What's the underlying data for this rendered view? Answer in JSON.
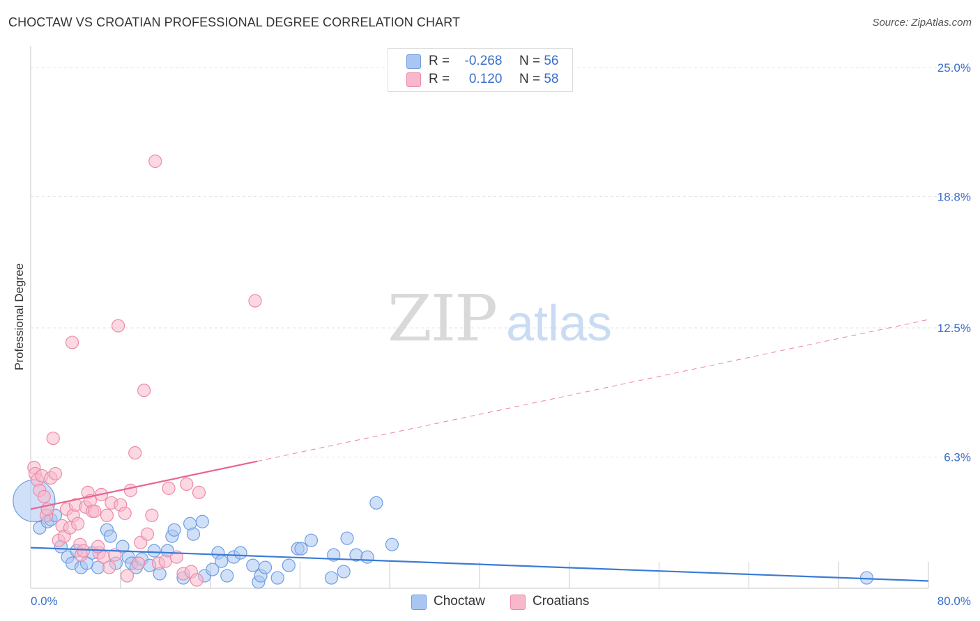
{
  "title": "CHOCTAW VS CROATIAN PROFESSIONAL DEGREE CORRELATION CHART",
  "source": "Source: ZipAtlas.com",
  "watermark": {
    "zip": "ZIP",
    "atlas": "atlas"
  },
  "legend": {
    "r_label": "R =",
    "n_label": "N =",
    "rows": [
      {
        "r": "-0.268",
        "n": "56",
        "color": "#a9c6f2",
        "border": "#6f9de0"
      },
      {
        "r": "0.120",
        "n": "58",
        "color": "#f7b8cb",
        "border": "#ec8aa8"
      }
    ]
  },
  "series_labels": [
    "Choctaw",
    "Croatians"
  ],
  "chart_data": {
    "type": "scatter",
    "title": "CHOCTAW VS CROATIAN PROFESSIONAL DEGREE CORRELATION CHART",
    "xlabel": "",
    "ylabel": "Professional Degree",
    "xlim": [
      0,
      80
    ],
    "ylim": [
      0,
      26
    ],
    "x_tick_labels": [
      "0.0%",
      "80.0%"
    ],
    "y_ticks": [
      6.3,
      12.5,
      18.8,
      25.0
    ],
    "y_tick_labels": [
      "6.3%",
      "12.5%",
      "18.8%",
      "25.0%"
    ],
    "grid": true,
    "series": [
      {
        "name": "Choctaw",
        "color": "#a9c6f2",
        "stroke": "#6f9de0",
        "line_color": "#3a7bd5",
        "trend": {
          "x0": 0,
          "y0": 1.95,
          "x1": 80,
          "y1": 0.35,
          "solid_until": 80
        },
        "points": [
          [
            0.3,
            4.2,
            30
          ],
          [
            0.8,
            2.9,
            9
          ],
          [
            1.5,
            3.2,
            9
          ],
          [
            1.8,
            3.3,
            9
          ],
          [
            2.2,
            3.5,
            9
          ],
          [
            2.7,
            2.0,
            9
          ],
          [
            3.3,
            1.5,
            9
          ],
          [
            3.7,
            1.2,
            9
          ],
          [
            4.1,
            1.8,
            9
          ],
          [
            4.5,
            1.0,
            9
          ],
          [
            5.0,
            1.2,
            9
          ],
          [
            5.5,
            1.7,
            9
          ],
          [
            6.0,
            1.0,
            9
          ],
          [
            6.8,
            2.8,
            9
          ],
          [
            7.1,
            2.5,
            9
          ],
          [
            7.6,
            1.2,
            9
          ],
          [
            8.2,
            2.0,
            9
          ],
          [
            8.7,
            1.5,
            9
          ],
          [
            9.0,
            1.2,
            9
          ],
          [
            9.4,
            1.0,
            9
          ],
          [
            9.9,
            1.4,
            9
          ],
          [
            10.6,
            1.1,
            9
          ],
          [
            11.0,
            1.8,
            9
          ],
          [
            11.5,
            0.7,
            9
          ],
          [
            12.2,
            1.8,
            9
          ],
          [
            12.6,
            2.5,
            9
          ],
          [
            12.8,
            2.8,
            9
          ],
          [
            13.6,
            0.5,
            9
          ],
          [
            14.2,
            3.1,
            9
          ],
          [
            14.5,
            2.6,
            9
          ],
          [
            15.3,
            3.2,
            9
          ],
          [
            15.5,
            0.6,
            9
          ],
          [
            16.2,
            0.9,
            9
          ],
          [
            16.7,
            1.7,
            9
          ],
          [
            17.0,
            1.3,
            9
          ],
          [
            17.5,
            0.6,
            9
          ],
          [
            18.1,
            1.5,
            9
          ],
          [
            18.7,
            1.7,
            9
          ],
          [
            19.8,
            1.1,
            9
          ],
          [
            20.3,
            0.3,
            9
          ],
          [
            20.5,
            0.6,
            9
          ],
          [
            20.9,
            1.0,
            9
          ],
          [
            22.0,
            0.5,
            9
          ],
          [
            23.0,
            1.1,
            9
          ],
          [
            23.8,
            1.9,
            9
          ],
          [
            24.1,
            1.9,
            9
          ],
          [
            25.0,
            2.3,
            9
          ],
          [
            26.8,
            0.5,
            9
          ],
          [
            27.0,
            1.6,
            9
          ],
          [
            27.9,
            0.8,
            9
          ],
          [
            28.2,
            2.4,
            9
          ],
          [
            29.0,
            1.6,
            9
          ],
          [
            30.0,
            1.5,
            9
          ],
          [
            30.8,
            4.1,
            9
          ],
          [
            32.2,
            2.1,
            9
          ],
          [
            74.5,
            0.5,
            9
          ]
        ]
      },
      {
        "name": "Croatians",
        "color": "#f7b8cb",
        "stroke": "#ec8aa8",
        "line_color": "#e8648f",
        "trend": {
          "x0": 0,
          "y0": 3.8,
          "x1": 80,
          "y1": 12.9,
          "solid_until": 20.2
        },
        "points": [
          [
            0.3,
            5.8,
            9
          ],
          [
            0.4,
            5.5,
            9
          ],
          [
            0.6,
            5.2,
            9
          ],
          [
            0.8,
            4.7,
            9
          ],
          [
            1.0,
            5.4,
            9
          ],
          [
            1.2,
            4.4,
            9
          ],
          [
            1.4,
            3.5,
            9
          ],
          [
            1.5,
            3.8,
            9
          ],
          [
            1.8,
            5.3,
            9
          ],
          [
            2.0,
            7.2,
            9
          ],
          [
            2.2,
            5.5,
            9
          ],
          [
            2.5,
            2.3,
            9
          ],
          [
            2.8,
            3.0,
            9
          ],
          [
            3.0,
            2.5,
            9
          ],
          [
            3.2,
            3.8,
            9
          ],
          [
            3.5,
            2.9,
            9
          ],
          [
            3.7,
            11.8,
            9
          ],
          [
            3.8,
            3.5,
            9
          ],
          [
            4.0,
            4.0,
            9
          ],
          [
            4.2,
            3.1,
            9
          ],
          [
            4.4,
            2.1,
            9
          ],
          [
            4.5,
            1.6,
            9
          ],
          [
            4.7,
            1.8,
            9
          ],
          [
            4.9,
            3.9,
            9
          ],
          [
            5.1,
            4.6,
            9
          ],
          [
            5.3,
            4.2,
            9
          ],
          [
            5.5,
            3.7,
            9
          ],
          [
            5.7,
            3.7,
            9
          ],
          [
            6.1,
            1.7,
            9
          ],
          [
            6.3,
            4.5,
            9
          ],
          [
            6.5,
            1.5,
            9
          ],
          [
            6.8,
            3.5,
            9
          ],
          [
            7.0,
            1.0,
            9
          ],
          [
            7.2,
            4.1,
            9
          ],
          [
            7.5,
            1.6,
            9
          ],
          [
            7.8,
            12.6,
            9
          ],
          [
            8.0,
            4.0,
            9
          ],
          [
            8.4,
            3.6,
            9
          ],
          [
            8.6,
            0.6,
            9
          ],
          [
            8.9,
            4.7,
            9
          ],
          [
            9.3,
            6.5,
            9
          ],
          [
            9.6,
            1.2,
            9
          ],
          [
            9.8,
            2.2,
            9
          ],
          [
            10.1,
            9.5,
            9
          ],
          [
            10.4,
            2.6,
            9
          ],
          [
            10.8,
            3.5,
            9
          ],
          [
            11.1,
            20.5,
            9
          ],
          [
            11.4,
            1.2,
            9
          ],
          [
            12.0,
            1.3,
            9
          ],
          [
            12.3,
            4.8,
            9
          ],
          [
            13.0,
            1.5,
            9
          ],
          [
            13.6,
            0.7,
            9
          ],
          [
            13.9,
            5.0,
            9
          ],
          [
            14.3,
            0.8,
            9
          ],
          [
            14.8,
            0.4,
            9
          ],
          [
            15.0,
            4.6,
            9
          ],
          [
            20.0,
            13.8,
            9
          ],
          [
            6.0,
            2.0,
            9
          ]
        ]
      }
    ]
  }
}
